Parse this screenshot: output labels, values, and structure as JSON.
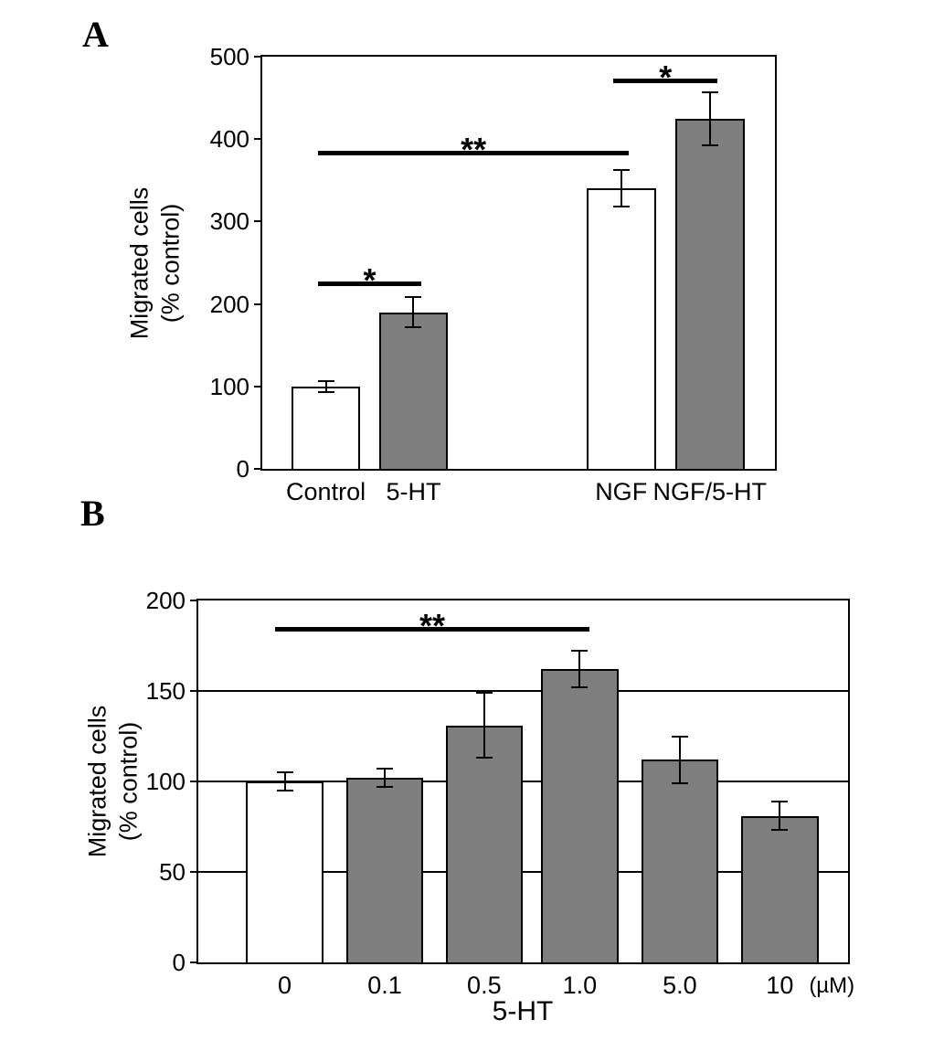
{
  "figure": {
    "panels": [
      {
        "label": "A",
        "ylabel_lines": [
          "Migrated cells",
          "(% control)"
        ]
      },
      {
        "label": "B",
        "ylabel_lines": [
          "Migrated cells",
          "(% control)"
        ],
        "xlabel": "5-HT",
        "x_unit": "(µM)"
      }
    ],
    "colors": {
      "bar_gray": "#7f7f7f",
      "bar_white": "#ffffff",
      "stroke": "#000000"
    }
  },
  "chart_data": [
    {
      "panel": "A",
      "type": "bar",
      "title": "",
      "categories": [
        "Control",
        "5-HT",
        "NGF",
        "NGF/5-HT"
      ],
      "values": [
        100,
        190,
        340,
        425
      ],
      "errors": [
        7,
        18,
        22,
        32
      ],
      "bar_fill_colors": [
        "#ffffff",
        "#7f7f7f",
        "#ffffff",
        "#7f7f7f"
      ],
      "ylabel": "Migrated cells (% control)",
      "xlabel": "",
      "ylim": [
        0,
        500
      ],
      "yticks": [
        0,
        100,
        200,
        300,
        400,
        500
      ],
      "grid": false,
      "significance": [
        {
          "label": "*",
          "from": 0,
          "to": 1,
          "y": 222
        },
        {
          "label": "**",
          "from": 0,
          "to": 2,
          "y": 380
        },
        {
          "label": "*",
          "from": 2,
          "to": 3,
          "y": 468
        }
      ],
      "bar_centers": [
        0.124,
        0.295,
        0.7,
        0.873
      ],
      "bar_width": 0.135
    },
    {
      "panel": "B",
      "type": "bar",
      "title": "",
      "categories": [
        "0",
        "0.1",
        "0.5",
        "1.0",
        "5.0",
        "10"
      ],
      "values": [
        100,
        102,
        131,
        162,
        112,
        81
      ],
      "errors": [
        5,
        5,
        18,
        10,
        13,
        8
      ],
      "bar_fill_colors": [
        "#ffffff",
        "#7f7f7f",
        "#7f7f7f",
        "#7f7f7f",
        "#7f7f7f",
        "#7f7f7f"
      ],
      "ylabel": "Migrated cells (% control)",
      "xlabel": "5-HT",
      "x_unit": "(µM)",
      "ylim": [
        0,
        200
      ],
      "yticks": [
        0,
        50,
        100,
        150,
        200
      ],
      "grid": true,
      "significance": [
        {
          "label": "**",
          "from": 0,
          "to": 3,
          "y": 183
        }
      ],
      "bar_centers": [
        0.133,
        0.287,
        0.44,
        0.587,
        0.741,
        0.895
      ],
      "bar_width": 0.119
    }
  ]
}
